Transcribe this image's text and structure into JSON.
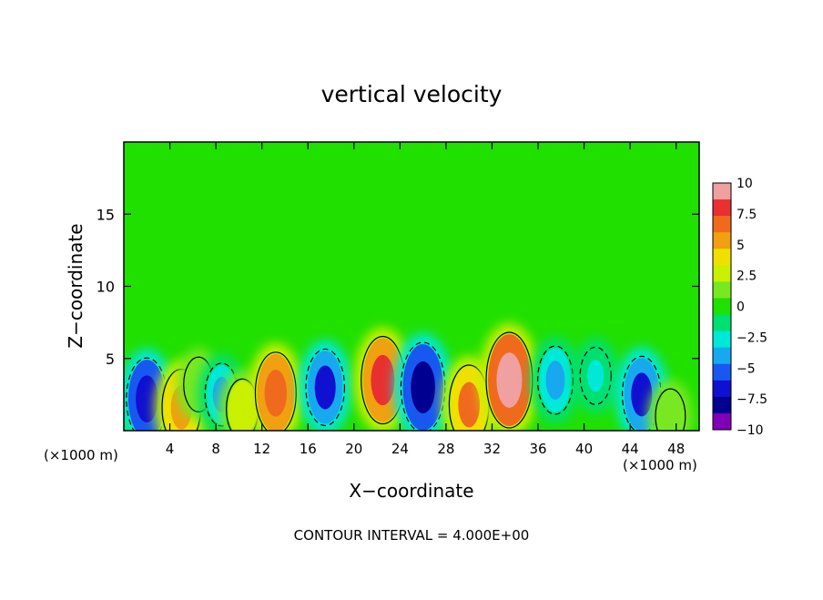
{
  "chart_data": {
    "type": "heatmap",
    "title": "vertical velocity",
    "xlabel": "X−coordinate",
    "ylabel": "Z−coordinate",
    "x_unit_left": "(×1000 m)",
    "x_unit_right": "(×1000 m)",
    "xlim": [
      0,
      50
    ],
    "ylim": [
      0,
      20
    ],
    "x_ticks": [
      4,
      8,
      12,
      16,
      20,
      24,
      28,
      32,
      36,
      40,
      44,
      48
    ],
    "x_tick_labels": [
      "4",
      "8",
      "12",
      "16",
      "20",
      "24",
      "28",
      "32",
      "36",
      "40",
      "44",
      "48"
    ],
    "y_ticks": [
      5,
      10,
      15
    ],
    "y_tick_labels": [
      "5",
      "10",
      "15"
    ],
    "footer": "CONTOUR INTERVAL = 4.000E+00",
    "colorbar": {
      "range": [
        -10,
        10
      ],
      "labels": [
        "10",
        "7.5",
        "5",
        "2.5",
        "0",
        "−2.5",
        "−5",
        "−7.5",
        "−10"
      ],
      "colors": [
        "#f0a0a0",
        "#e83030",
        "#f06a1e",
        "#f0a010",
        "#f0e000",
        "#c8f000",
        "#78e820",
        "#20e000",
        "#00e070",
        "#00e8d8",
        "#18a8f0",
        "#1858f0",
        "#1010d0",
        "#000090",
        "#8000b8"
      ]
    },
    "background_color": "#20e000",
    "cells": [
      {
        "x": 2.0,
        "z": 2.2,
        "w": -7.0
      },
      {
        "x": 5.0,
        "z": 1.6,
        "w": 6.0
      },
      {
        "x": 6.5,
        "z": 3.2,
        "w": 2.0
      },
      {
        "x": 8.5,
        "z": 2.5,
        "w": -3.5
      },
      {
        "x": 10.3,
        "z": 1.5,
        "w": 3.0
      },
      {
        "x": 13.2,
        "z": 2.6,
        "w": 7.0
      },
      {
        "x": 17.5,
        "z": 3.0,
        "w": -6.0
      },
      {
        "x": 22.5,
        "z": 3.5,
        "w": 8.0
      },
      {
        "x": 26.0,
        "z": 3.0,
        "w": -8.5
      },
      {
        "x": 30.0,
        "z": 1.8,
        "w": 6.5
      },
      {
        "x": 33.5,
        "z": 3.5,
        "w": 9.5
      },
      {
        "x": 37.5,
        "z": 3.5,
        "w": -4.5
      },
      {
        "x": 41.0,
        "z": 3.8,
        "w": -2.5
      },
      {
        "x": 45.0,
        "z": 2.5,
        "w": -6.0
      },
      {
        "x": 47.5,
        "z": 1.0,
        "w": 2.0
      }
    ]
  }
}
